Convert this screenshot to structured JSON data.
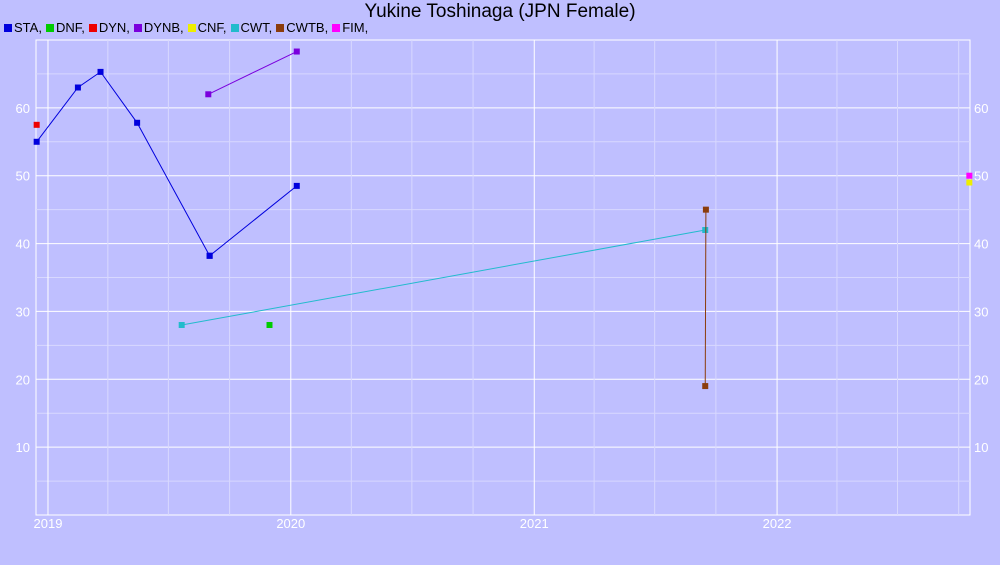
{
  "chart_data": {
    "type": "line",
    "title": "Yukine Toshinaga (JPN Female)",
    "x_axis": {
      "type": "date",
      "range": [
        "2018-12-14",
        "2022-10-18"
      ],
      "tick_labels": [
        "2019",
        "2020",
        "2021",
        "2022"
      ]
    },
    "y_axis": {
      "range": [
        0,
        70
      ],
      "tick_values": [
        10,
        20,
        30,
        40,
        50,
        60
      ],
      "tick_labels": [
        "10",
        "20",
        "30",
        "40",
        "50",
        "60"
      ],
      "mirrored_right": true
    },
    "grid": true,
    "legend_position": "top-left",
    "series": [
      {
        "name": "STA",
        "color": "#0000dd",
        "points": [
          [
            "2018-12-15",
            55
          ],
          [
            "2019-02-15",
            63
          ],
          [
            "2019-03-21",
            65.3
          ],
          [
            "2019-05-15",
            57.8
          ],
          [
            "2019-09-01",
            38.2
          ]
        ]
      },
      {
        "name": "STA",
        "color": "#0000dd",
        "points": [
          [
            "2019-09-01",
            38.2
          ],
          [
            "2020-01-10",
            48.5
          ]
        ],
        "legend": false
      },
      {
        "name": "DNF",
        "color": "#00cc00",
        "points": [
          [
            "2019-11-30",
            28
          ]
        ]
      },
      {
        "name": "DYN",
        "color": "#ee0000",
        "points": [
          [
            "2018-12-15",
            57.5
          ]
        ]
      },
      {
        "name": "DYNB",
        "color": "#7a00dd",
        "points": [
          [
            "2019-08-30",
            62
          ],
          [
            "2020-01-10",
            68.3
          ]
        ]
      },
      {
        "name": "CNF",
        "color": "#eeee00",
        "points": [
          [
            "2022-10-17",
            49
          ]
        ]
      },
      {
        "name": "CWT",
        "color": "#22bbcc",
        "points": [
          [
            "2019-07-21",
            28
          ],
          [
            "2021-09-15",
            42
          ]
        ]
      },
      {
        "name": "CWTB",
        "color": "#8b3c0c",
        "points": [
          [
            "2021-09-16",
            45
          ],
          [
            "2021-09-15",
            19
          ]
        ]
      },
      {
        "name": "FIM",
        "color": "#ff00ff",
        "points": [
          [
            "2022-10-17",
            50
          ]
        ]
      }
    ]
  }
}
